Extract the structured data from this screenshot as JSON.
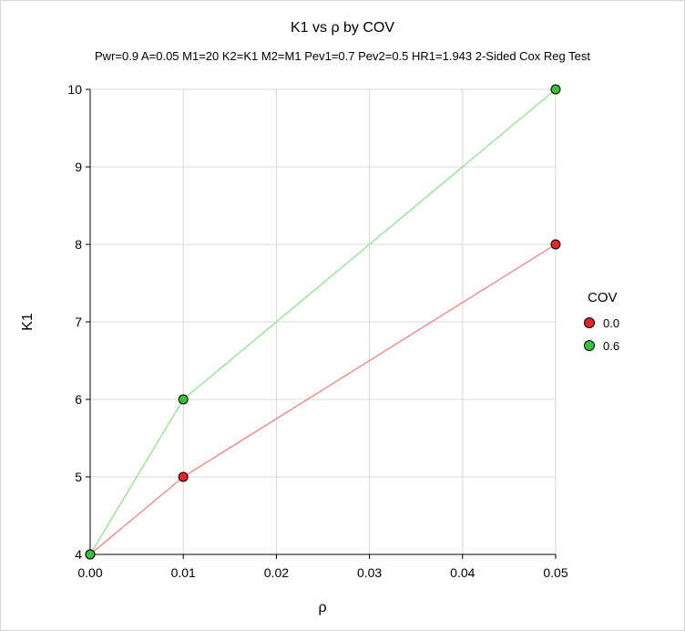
{
  "chart_data": {
    "type": "line",
    "title": "K1 vs ρ by COV",
    "subtitle": "Pwr=0.9 A=0.05 M1=20 K2=K1 M2=M1 Pev1=0.7 Pev2=0.5 HR1=1.943 2-Sided Cox Reg Test",
    "xlabel": "ρ",
    "ylabel": "K1",
    "xlim": [
      0.0,
      0.05
    ],
    "ylim": [
      4,
      10
    ],
    "xticks": [
      "0.00",
      "0.01",
      "0.02",
      "0.03",
      "0.04",
      "0.05"
    ],
    "yticks": [
      "4",
      "5",
      "6",
      "7",
      "8",
      "9",
      "10"
    ],
    "grid": true,
    "legend": {
      "title": "COV",
      "position": "right"
    },
    "series": [
      {
        "name": "0.0",
        "color": "#e8262a",
        "line_color": "#f08080",
        "x": [
          0.0,
          0.01,
          0.05
        ],
        "y": [
          4,
          5,
          8
        ]
      },
      {
        "name": "0.6",
        "color": "#3cbf3c",
        "line_color": "#8fe08f",
        "x": [
          0.0,
          0.01,
          0.05
        ],
        "y": [
          4,
          6,
          10
        ]
      }
    ]
  }
}
